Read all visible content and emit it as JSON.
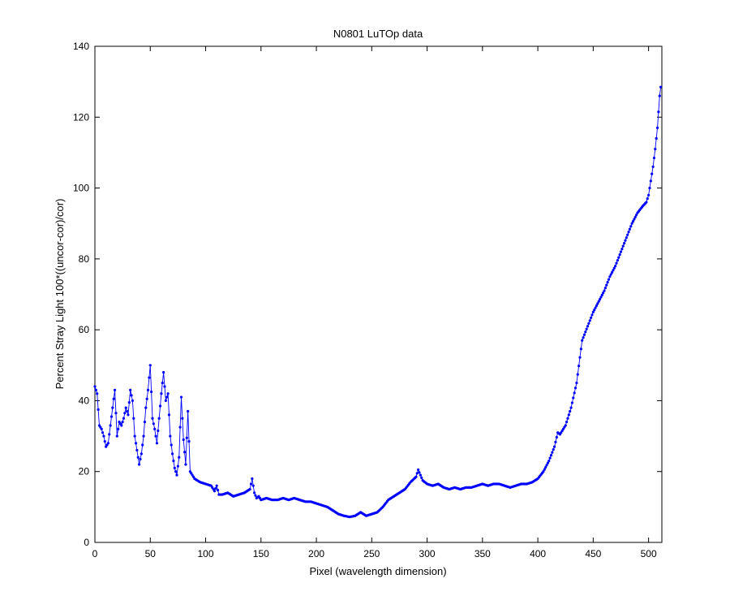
{
  "chart_data": {
    "type": "line",
    "title": "N0801   LuTOp data",
    "xlabel": "Pixel (wavelength dimension)",
    "ylabel": "Percent Stray Light 100*((uncor-cor)/cor)",
    "xlim": [
      0,
      512
    ],
    "ylim": [
      0,
      140
    ],
    "xticks": [
      0,
      50,
      100,
      150,
      200,
      250,
      300,
      350,
      400,
      450,
      500
    ],
    "yticks": [
      0,
      20,
      40,
      60,
      80,
      100,
      120,
      140
    ],
    "grid": false,
    "line_color": "#0000ff",
    "marker": "dot",
    "anchors_x": [
      0,
      2,
      4,
      6,
      8,
      10,
      12,
      14,
      16,
      18,
      20,
      22,
      24,
      26,
      28,
      30,
      32,
      34,
      36,
      38,
      40,
      42,
      44,
      46,
      48,
      50,
      52,
      54,
      56,
      58,
      60,
      62,
      64,
      66,
      68,
      70,
      72,
      74,
      76,
      78,
      80,
      82,
      84,
      86,
      88,
      90,
      95,
      100,
      105,
      108,
      110,
      112,
      115,
      120,
      125,
      130,
      135,
      140,
      142,
      144,
      146,
      148,
      150,
      155,
      160,
      165,
      170,
      175,
      180,
      185,
      190,
      195,
      200,
      205,
      210,
      215,
      220,
      225,
      230,
      235,
      240,
      245,
      250,
      255,
      260,
      265,
      270,
      275,
      280,
      285,
      290,
      292,
      294,
      296,
      300,
      305,
      310,
      315,
      320,
      325,
      330,
      335,
      340,
      345,
      350,
      355,
      360,
      365,
      370,
      375,
      380,
      385,
      390,
      395,
      400,
      405,
      410,
      415,
      418,
      420,
      425,
      430,
      435,
      440,
      445,
      450,
      455,
      460,
      465,
      470,
      475,
      480,
      485,
      490,
      495,
      498,
      500,
      502,
      504,
      506,
      508,
      510,
      511
    ],
    "anchors_y": [
      44,
      42,
      33,
      32,
      30,
      27,
      28,
      33,
      38,
      43,
      30,
      34,
      33,
      35,
      38,
      36,
      43,
      40,
      30,
      26,
      22,
      25,
      30,
      38,
      43,
      50,
      35,
      32,
      28,
      35,
      42,
      48,
      40,
      42,
      30,
      25,
      21,
      19,
      24,
      41,
      29,
      22,
      37,
      20,
      19,
      18,
      17,
      16.5,
      16,
      14.5,
      16,
      13.5,
      13.5,
      14,
      13,
      13.5,
      14,
      15,
      18,
      14,
      12.5,
      13,
      12,
      12.5,
      12,
      12,
      12.5,
      12,
      12.5,
      12,
      11.5,
      11.5,
      11,
      10.5,
      10,
      9,
      8,
      7.5,
      7.2,
      7.5,
      8.5,
      7.5,
      8,
      8.5,
      10,
      12,
      13,
      14,
      15,
      17,
      18.5,
      20.5,
      19,
      17.5,
      16.5,
      16,
      16.5,
      15.5,
      15,
      15.5,
      15,
      15.5,
      15.5,
      16,
      16.5,
      16,
      16.5,
      16.5,
      16,
      15.5,
      16,
      16.5,
      16.5,
      17,
      18,
      20,
      23,
      27,
      31,
      30.5,
      33,
      38,
      45,
      57,
      61,
      65,
      68,
      71,
      75,
      78,
      82,
      86,
      90,
      93,
      95,
      96,
      98,
      102,
      106,
      111,
      117,
      126,
      128.5
    ]
  }
}
